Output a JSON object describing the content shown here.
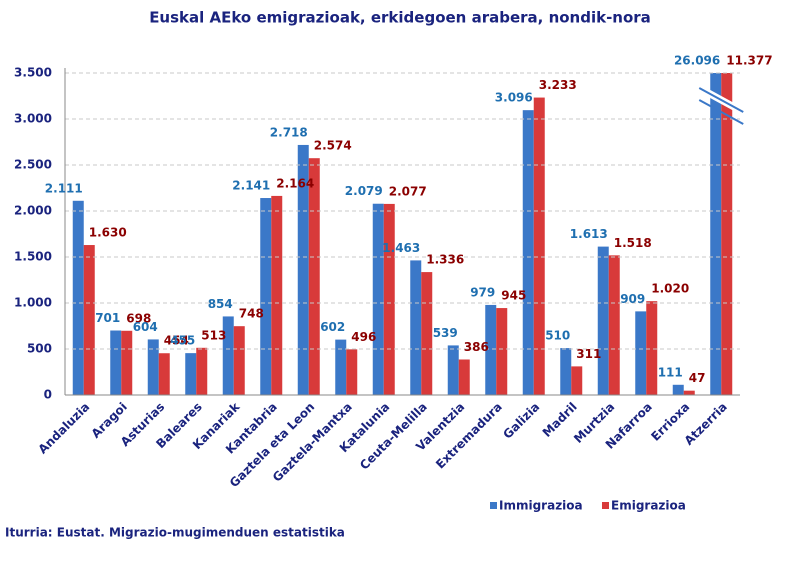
{
  "chart_data": {
    "type": "bar",
    "title": "Euskal AEko emigrazioak, erkidegoen arabera, nondik-nora",
    "source": "Iturria: Eustat. Migrazio-mugimenduen estatistika",
    "categories": [
      "Andaluzia",
      "Aragoi",
      "Asturias",
      "Baleares",
      "Kanariak",
      "Kantabria",
      "Gaztela eta Leon",
      "Gaztela-Mantxa",
      "Katalunia",
      "Ceuta-Melilla",
      "Valentzia",
      "Extremadura",
      "Galizia",
      "Madril",
      "Murtzia",
      "Nafarroa",
      "Errioxa",
      "Atzerria"
    ],
    "series": [
      {
        "name": "Immigrazioa",
        "color": "#3b78c8",
        "label_color": "#1f6fb0",
        "values": [
          2111,
          701,
          604,
          455,
          854,
          2141,
          2718,
          602,
          2079,
          1463,
          539,
          979,
          3096,
          510,
          1613,
          909,
          111,
          26096
        ],
        "value_labels": [
          "2.111",
          "701",
          "604",
          "455",
          "854",
          "2.141",
          "2.718",
          "602",
          "2.079",
          "1.463",
          "539",
          "979",
          "3.096",
          "510",
          "1.613",
          "909",
          "111",
          "26.096"
        ]
      },
      {
        "name": "Emigrazioa",
        "color": "#d83a3a",
        "label_color": "#8b0000",
        "values": [
          1630,
          698,
          454,
          513,
          748,
          2164,
          2574,
          496,
          2077,
          1336,
          386,
          945,
          3233,
          311,
          1518,
          1020,
          47,
          11377
        ],
        "value_labels": [
          "1.630",
          "698",
          "454",
          "513",
          "748",
          "2.164",
          "2.574",
          "496",
          "2.077",
          "1.336",
          "386",
          "945",
          "3.233",
          "311",
          "1.518",
          "1.020",
          "47",
          "11.377"
        ]
      }
    ],
    "ylim": [
      0,
      3500
    ],
    "yticks": [
      0,
      500,
      {
        "value": 1000,
        "label": "1.000"
      },
      {
        "value": 1500,
        "label": "1.500"
      },
      {
        "value": 2000,
        "label": "2.000"
      },
      {
        "value": 2500,
        "label": "2.500"
      },
      {
        "value": 3000,
        "label": "3.000"
      },
      {
        "value": 3500,
        "label": "3.500"
      }
    ],
    "grid": true
  }
}
